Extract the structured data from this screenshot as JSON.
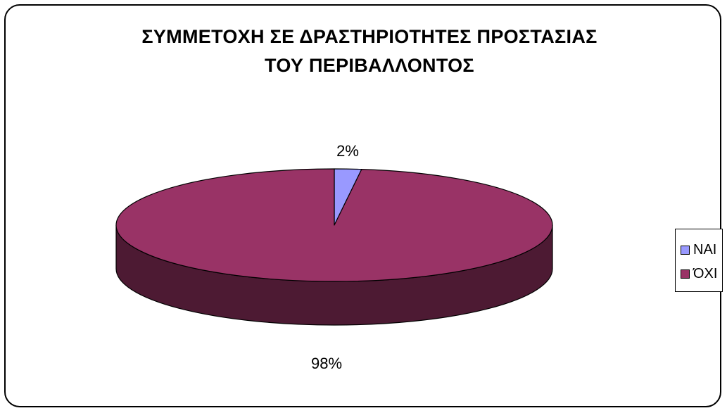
{
  "chart_data": {
    "type": "pie",
    "style": "3d",
    "title_lines": [
      "ΣΥΜΜΕΤΟΧΗ ΣΕ ΔΡΑΣΤΗΡΙΟΤΗΤΕΣ ΠΡΟΣΤΑΣΙΑΣ",
      "ΤΟΥ ΠΕΡΙΒΑΛΛΟΝΤΟΣ"
    ],
    "categories": [
      "ΝΑΙ",
      "ΌΧΙ"
    ],
    "values": [
      2,
      98
    ],
    "data_labels": [
      "2%",
      "98%"
    ],
    "colors": [
      "#9999ff",
      "#993366"
    ],
    "side_colors": [
      "#4d4d80",
      "#4d1a33"
    ],
    "legend_position": "right"
  }
}
